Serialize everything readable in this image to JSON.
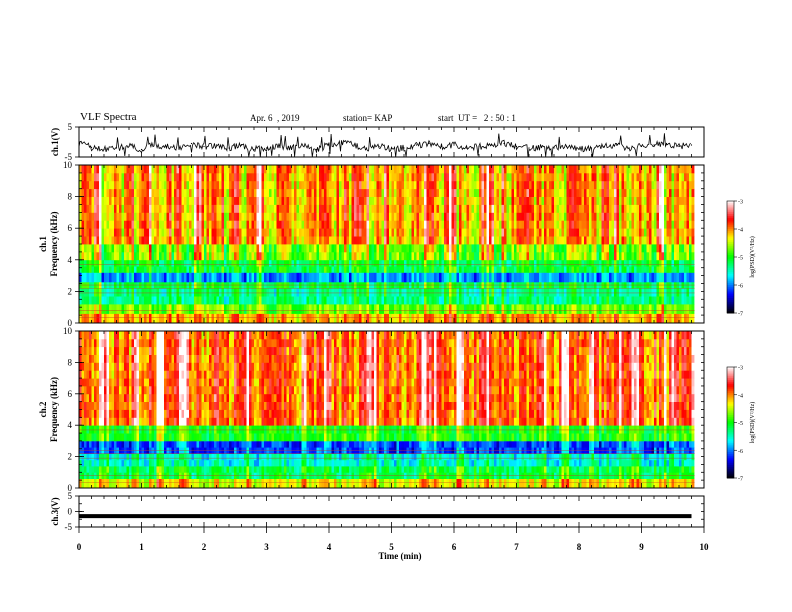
{
  "header": {
    "title": "VLF Spectra",
    "date": "Apr. 6  , 2019",
    "station": "station= KAP",
    "start": "start  UT =   2 : 50 : 1"
  },
  "chart_data": [
    {
      "type": "line",
      "panel": "ch1-waveform",
      "ylabel": "ch.1(V)",
      "ytick_labels": [
        "5",
        "-5"
      ],
      "ylim": [
        -5,
        5
      ],
      "x": [
        0.0,
        0.2,
        0.4,
        0.6,
        0.8,
        1.0,
        1.2,
        1.4,
        1.6,
        1.8,
        2.0,
        2.2,
        2.4,
        2.6,
        2.8,
        3.0,
        3.2,
        3.4,
        3.6,
        3.8,
        4.0,
        4.2,
        4.4,
        4.6,
        4.8,
        5.0,
        5.2,
        5.4,
        5.6,
        5.8,
        6.0,
        6.2,
        6.4,
        6.6,
        6.8,
        7.0,
        7.2,
        7.4,
        7.6,
        7.8,
        8.0,
        8.2,
        8.4,
        8.6,
        8.8,
        9.0,
        9.2,
        9.4,
        9.6,
        9.8
      ],
      "values": [
        -0.5,
        -1.8,
        -2.5,
        -2.0,
        -1.5,
        -2.5,
        -1.0,
        -1.5,
        -2.0,
        -0.5,
        -1.5,
        -1.0,
        -2.0,
        -1.0,
        -2.5,
        -2.0,
        -1.0,
        -2.0,
        -1.5,
        -2.5,
        -1.0,
        0.0,
        -1.0,
        -2.0,
        -1.5,
        -2.2,
        -2.0,
        -1.0,
        -0.5,
        -1.5,
        -1.0,
        -2.0,
        -1.5,
        -1.0,
        -0.5,
        -1.5,
        -2.0,
        -1.8,
        -2.0,
        -1.5,
        -2.5,
        -2.0,
        -1.5,
        -1.0,
        -2.0,
        -1.5,
        -1.0,
        -0.5,
        -1.5,
        -1.0
      ]
    },
    {
      "type": "heatmap",
      "panel": "ch1-spectrogram",
      "ylabel_lines": [
        "ch.1",
        "Frequency  (kHz)"
      ],
      "ytick_labels": [
        "0",
        "2",
        "4",
        "6",
        "8",
        "10"
      ],
      "ylim": [
        0,
        10
      ],
      "colorbar_label": "log(PSD)(V²/Hz)",
      "colorbar_ticks": [
        "-3",
        "-4",
        "-5",
        "-6",
        "-7"
      ],
      "colorbar_range": [
        -7,
        -3
      ],
      "freq_bands": [
        {
          "from": 0.0,
          "to": 0.6,
          "level": -4.2
        },
        {
          "from": 0.6,
          "to": 1.2,
          "level": -4.8
        },
        {
          "from": 1.2,
          "to": 2.2,
          "level": -5.4
        },
        {
          "from": 2.2,
          "to": 2.6,
          "level": -5.2
        },
        {
          "from": 2.6,
          "to": 3.2,
          "level": -6.0
        },
        {
          "from": 3.2,
          "to": 4.0,
          "level": -5.2
        },
        {
          "from": 4.0,
          "to": 5.0,
          "level": -4.8
        },
        {
          "from": 5.0,
          "to": 10.0,
          "level": -4.2
        }
      ],
      "bright_minutes": [
        0.3,
        0.8,
        1.1,
        1.6,
        1.9,
        2.5,
        2.9,
        3.3,
        3.9,
        4.4,
        5.6,
        5.9,
        6.6,
        7.2,
        7.9,
        8.4,
        8.6,
        9.3
      ]
    },
    {
      "type": "heatmap",
      "panel": "ch2-spectrogram",
      "ylabel_lines": [
        "ch.2",
        "Frequency  (kHz)"
      ],
      "ytick_labels": [
        "0",
        "2",
        "4",
        "6",
        "8",
        "10"
      ],
      "ylim": [
        0,
        10
      ],
      "colorbar_label": "log(PSD)(V²/Hz)",
      "colorbar_ticks": [
        "-3",
        "-4",
        "-5",
        "-6",
        "-7"
      ],
      "colorbar_range": [
        -7,
        -3
      ],
      "freq_bands": [
        {
          "from": 0.0,
          "to": 0.6,
          "level": -4.4
        },
        {
          "from": 0.6,
          "to": 1.4,
          "level": -5.2
        },
        {
          "from": 1.4,
          "to": 2.2,
          "level": -5.6
        },
        {
          "from": 2.2,
          "to": 3.0,
          "level": -6.2
        },
        {
          "from": 3.0,
          "to": 4.0,
          "level": -5.0
        },
        {
          "from": 4.0,
          "to": 10.0,
          "level": -3.9
        }
      ],
      "bright_minutes": [
        0.4,
        0.9,
        1.3,
        1.7,
        2.2,
        2.7,
        3.6,
        4.0,
        4.7,
        5.5,
        6.1,
        6.5,
        7.4,
        7.8,
        8.2,
        8.9,
        9.5
      ]
    },
    {
      "type": "line",
      "panel": "ch3-waveform",
      "ylabel": "ch.3(V)",
      "ytick_labels": [
        "5",
        "0",
        "-5"
      ],
      "ylim": [
        -5,
        5
      ],
      "x": [
        0,
        9.8
      ],
      "values": [
        -1.5,
        -1.5
      ]
    }
  ],
  "xaxis": {
    "label": "Time  (min)",
    "ticks": [
      "0",
      "1",
      "2",
      "3",
      "4",
      "5",
      "6",
      "7",
      "8",
      "9",
      "10"
    ],
    "xlim": [
      0,
      10
    ]
  },
  "colors": {
    "colormap": [
      "#000000",
      "#0000ff",
      "#00ffff",
      "#00ff00",
      "#ffff00",
      "#ff0000",
      "#ffffff"
    ]
  }
}
